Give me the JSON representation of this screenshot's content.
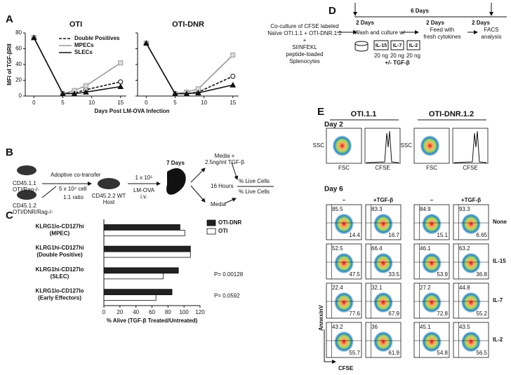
{
  "panel_labels": [
    "A",
    "B",
    "C",
    "D",
    "E"
  ],
  "chart_data": [
    {
      "type": "line",
      "title": "OTI",
      "ylabel": "MFI of TGF-βRII",
      "xlabel": "Days Post LM-OVA Infection",
      "x": [
        0,
        5,
        7,
        9,
        15
      ],
      "xlim": [
        -1.5,
        16
      ],
      "xticks": [
        0,
        5,
        10,
        15
      ],
      "ylim": [
        0,
        80
      ],
      "yticks": [
        0,
        20,
        40,
        60,
        80
      ],
      "ytick_labels": true,
      "legend": "upper right",
      "series": [
        {
          "name": "Double Positives",
          "color": "#111111",
          "dashed": true,
          "marker": "circle-open",
          "values": [
            74,
            3,
            4,
            8,
            18
          ]
        },
        {
          "name": "MPECs",
          "color": "#999999",
          "dashed": false,
          "marker": "square",
          "values": [
            74,
            3,
            7,
            13,
            42
          ]
        },
        {
          "name": "SLECs",
          "color": "#111111",
          "dashed": false,
          "marker": "triangle",
          "values": [
            74,
            3,
            3,
            5,
            12
          ]
        }
      ]
    },
    {
      "type": "line",
      "title": "OTI-DNR",
      "x": [
        0,
        5,
        7,
        9,
        15
      ],
      "xlim": [
        -1.5,
        16
      ],
      "xticks": [
        0,
        5,
        10,
        15
      ],
      "ylim": [
        0,
        80
      ],
      "yticks": [
        0,
        20,
        40,
        60,
        80
      ],
      "ytick_labels": false,
      "legend": false,
      "series": [
        {
          "name": "Double Positives",
          "color": "#111111",
          "dashed": true,
          "marker": "circle-open",
          "values": [
            67,
            3,
            3,
            5,
            25
          ]
        },
        {
          "name": "MPECs",
          "color": "#999999",
          "dashed": false,
          "marker": "square",
          "values": [
            67,
            3,
            5,
            9,
            52
          ]
        },
        {
          "name": "SLECs",
          "color": "#111111",
          "dashed": false,
          "marker": "triangle",
          "values": [
            67,
            3,
            3,
            4,
            14
          ]
        }
      ]
    },
    {
      "type": "bar",
      "orientation": "horizontal",
      "xlabel": "% Alive (TGF-β Treated/Untreated)",
      "categories": [
        "KLRG1lo-CD127hi",
        "KLRG1hi-CD127hi",
        "KLRG1hi-CD127lo",
        "KLRG1lo-CD127lo"
      ],
      "category_subtitles": [
        "(MPEC)",
        "(Double Positive)",
        "(SLEC)",
        "(Early Effectors)"
      ],
      "xlim": [
        0,
        120
      ],
      "xticks": [
        0,
        20,
        40,
        60,
        80,
        100,
        120
      ],
      "legend": "upper right",
      "series": [
        {
          "name": "OTI-DNR",
          "color": "#222222",
          "values": [
            95,
            108,
            93,
            85
          ]
        },
        {
          "name": "OTI",
          "color": "#ffffff",
          "values": [
            101,
            108,
            74,
            65
          ]
        }
      ],
      "annotations": [
        null,
        null,
        "P= 0.00128",
        "P= 0.0592"
      ]
    }
  ],
  "panel_b": {
    "donor_1": [
      "CD45.1.1",
      "OTI/Rag-/-"
    ],
    "donor_2": [
      "CD45.1.2",
      "OTI/DNR/Rag-/-"
    ],
    "transfer": [
      "Adoptive co-transfer",
      "5 x 10⁴ cell",
      "1:1 ratio"
    ],
    "host": [
      "CD45.2.2 WT",
      "Host"
    ],
    "infection": [
      "1 x 10⁵",
      "LM-OVA",
      "i.v."
    ],
    "days": "7 Days",
    "treatment": [
      "Media +",
      "2.5ng/ml TGF-β"
    ],
    "duration": "16 Hours",
    "control": "Media",
    "readout": [
      "% Live Cells",
      "% Live Cells"
    ]
  },
  "panel_d": {
    "total": "6 Days",
    "steps": [
      "2 Days",
      "2 Days",
      "2 Days"
    ],
    "coculture": [
      "Co-culture of CFSE labeled",
      "Naïve OTI.1.1 + OTI-DNR.1.2",
      "+",
      "SIINFEKL",
      "peptide-loaded",
      "Splenocytes"
    ],
    "wash": "Wash and culture w/",
    "cytokines": [
      "IL-15",
      "IL-7",
      "IL-2"
    ],
    "dose": "20 ng",
    "tgf": "+/- TGF-β",
    "feed": [
      "Feed with",
      "fresh cytokines"
    ],
    "facs": [
      "FACS",
      "analysis"
    ]
  },
  "panel_e": {
    "groups": [
      "OTI.1.1",
      "OTI-DNR.1.2"
    ],
    "day2": {
      "label": "Day 2",
      "scatter_y": "SSC",
      "scatter_x": "FSC",
      "histogram_x": "CFSE"
    },
    "day6": {
      "label": "Day 6",
      "conditions": [
        "–",
        "+TGF-β"
      ],
      "y_axis": "AnnexinV",
      "x_axis": "CFSE",
      "rows": [
        {
          "name": "None",
          "panels": [
            [
              "85.5",
              "14.4"
            ],
            [
              "83.3",
              "16.7"
            ],
            [
              "84.9",
              "15.1"
            ],
            [
              "93.3",
              "6.65"
            ]
          ]
        },
        {
          "name": "IL-15",
          "panels": [
            [
              "52.5",
              "47.5"
            ],
            [
              "66.4",
              "33.5"
            ],
            [
              "46.1",
              "53.9"
            ],
            [
              "63.2",
              "36.8"
            ]
          ]
        },
        {
          "name": "IL-7",
          "panels": [
            [
              "22.4",
              "77.6"
            ],
            [
              "32.1",
              "67.9"
            ],
            [
              "27.2",
              "72.8"
            ],
            [
              "44.8",
              "55.2"
            ]
          ]
        },
        {
          "name": "IL-2",
          "panels": [
            [
              "43.2",
              "55.7"
            ],
            [
              "36",
              "61.9"
            ],
            [
              "45.1",
              "54.8"
            ],
            [
              "43.5",
              "56.5"
            ]
          ]
        }
      ]
    }
  }
}
